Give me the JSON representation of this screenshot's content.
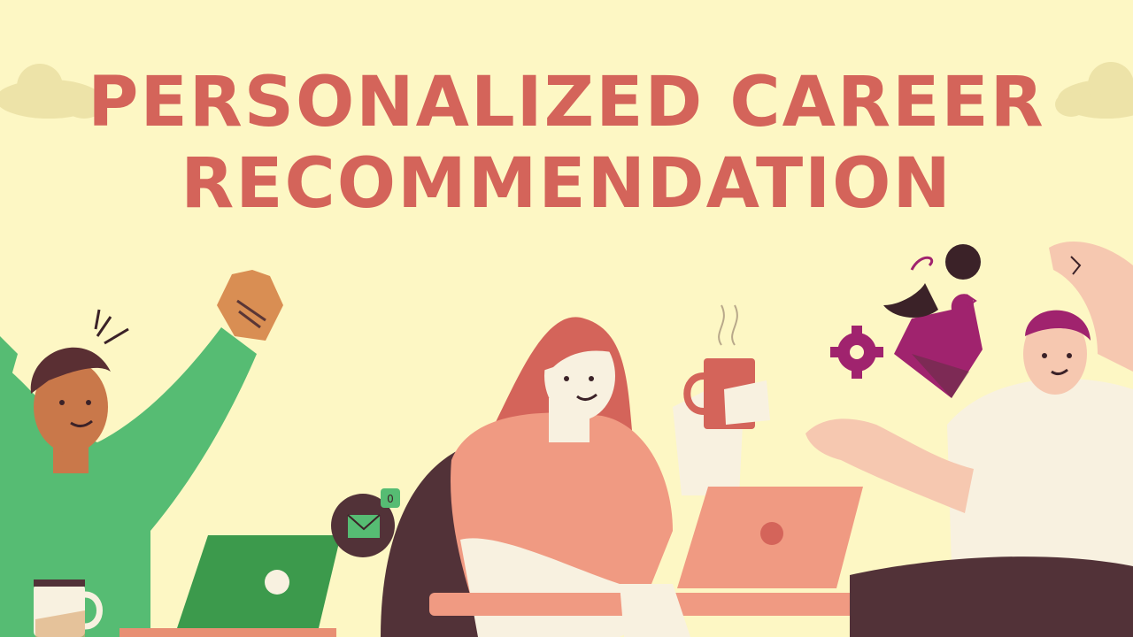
{
  "slide": {
    "title_line_1": "PERSonalized career",
    "title_line_2": "Recommendation"
  },
  "colors": {
    "background": "#fdf7c4",
    "title": "#d4645a",
    "cloud": "#ede3a8",
    "green_shirt": "#56bc73",
    "coral": "#f09a82",
    "plum": "#a0236e",
    "dark_brown": "#523238"
  },
  "icons": {
    "mail_badge_count": "0"
  }
}
